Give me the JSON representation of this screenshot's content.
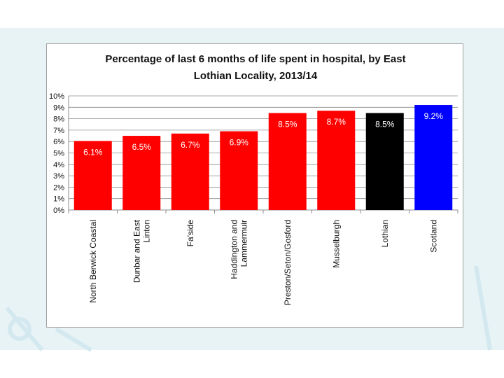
{
  "colors": {
    "band": "#e8f3f6",
    "band_motif": "#d3e8ef",
    "red": "#ff0000",
    "black": "#000000",
    "blue": "#0000ff",
    "grid": "#8c8c8c",
    "label_on_red": "#ffffff"
  },
  "chart_data": {
    "type": "bar",
    "title": "Percentage of last 6 months of life spent in hospital, by East Lothian Locality, 2013/14",
    "xlabel": "",
    "ylabel": "",
    "ylim": [
      0,
      10
    ],
    "yticks": [
      "0%",
      "1%",
      "2%",
      "3%",
      "4%",
      "5%",
      "6%",
      "7%",
      "8%",
      "9%",
      "10%"
    ],
    "grid": true,
    "legend": "none",
    "categories": [
      [
        "North Berwick Coastal"
      ],
      [
        "Dunbar and East",
        "Linton"
      ],
      [
        "Fa'side"
      ],
      [
        "Haddington and",
        "Lammermuir"
      ],
      [
        "Preston/Seton/Gosford"
      ],
      [
        "Musselburgh"
      ],
      [
        "Lothian"
      ],
      [
        "Scotland"
      ]
    ],
    "values": [
      6.05,
      6.5,
      6.7,
      6.9,
      8.5,
      8.7,
      8.5,
      9.2
    ],
    "data_labels": [
      "6.1%",
      "6.5%",
      "6.7%",
      "6.9%",
      "8.5%",
      "8.7%",
      "8.5%",
      "9.2%"
    ],
    "bar_colors": [
      "red",
      "red",
      "red",
      "red",
      "red",
      "red",
      "black",
      "blue"
    ]
  }
}
